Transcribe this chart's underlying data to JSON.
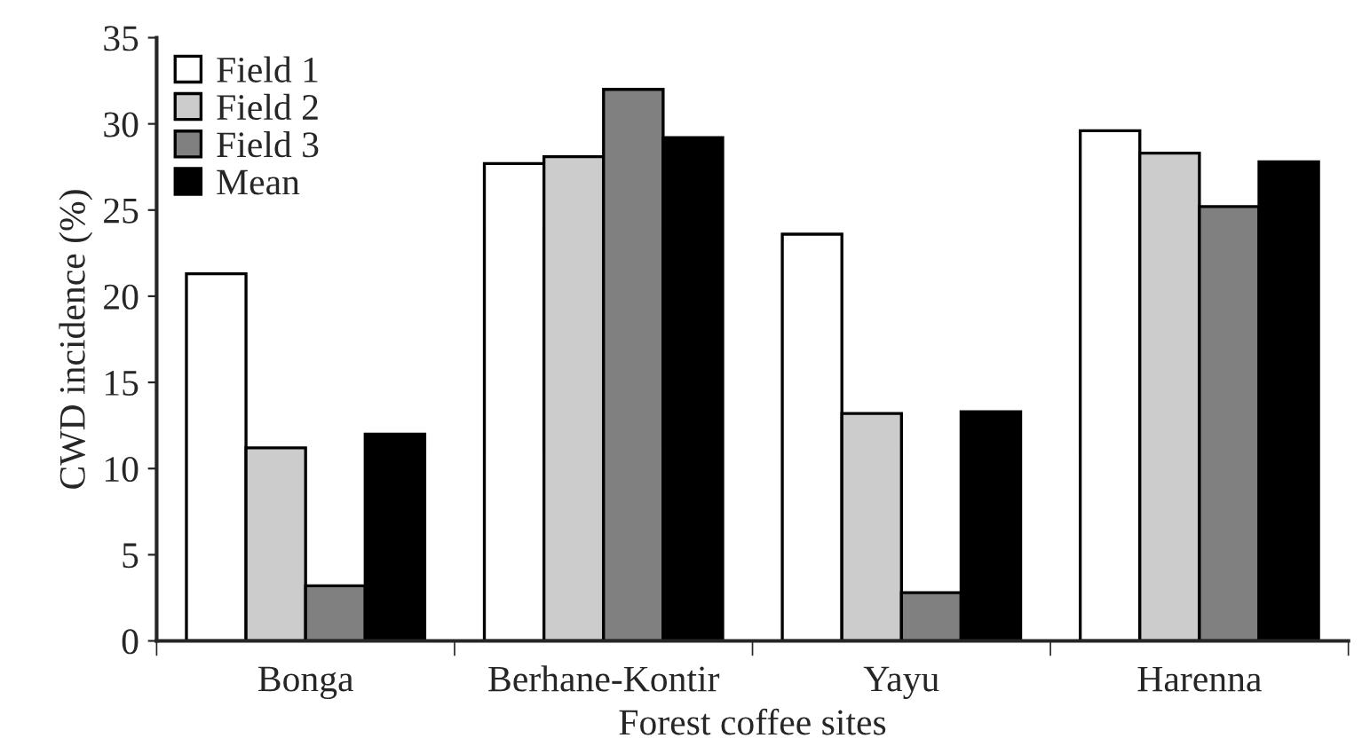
{
  "chart_data": {
    "type": "bar",
    "xlabel": "Forest coffee sites",
    "ylabel": "CWD incidence (%)",
    "categories": [
      "Bonga",
      "Berhane-Kontir",
      "Yayu",
      "Harenna"
    ],
    "series": [
      {
        "name": "Field 1",
        "color": "#ffffff",
        "values": [
          21.3,
          27.7,
          23.6,
          29.6
        ]
      },
      {
        "name": "Field 2",
        "color": "#cccccc",
        "values": [
          11.2,
          28.1,
          13.2,
          28.3
        ]
      },
      {
        "name": "Field 3",
        "color": "#808080",
        "values": [
          3.2,
          32.0,
          2.8,
          25.2
        ]
      },
      {
        "name": "Mean",
        "color": "#000000",
        "values": [
          12.0,
          29.2,
          13.3,
          27.8
        ]
      }
    ],
    "ylim": [
      0,
      35
    ],
    "yticks": [
      0,
      5,
      10,
      15,
      20,
      25,
      30,
      35
    ],
    "legend": "top left",
    "grid": false
  }
}
